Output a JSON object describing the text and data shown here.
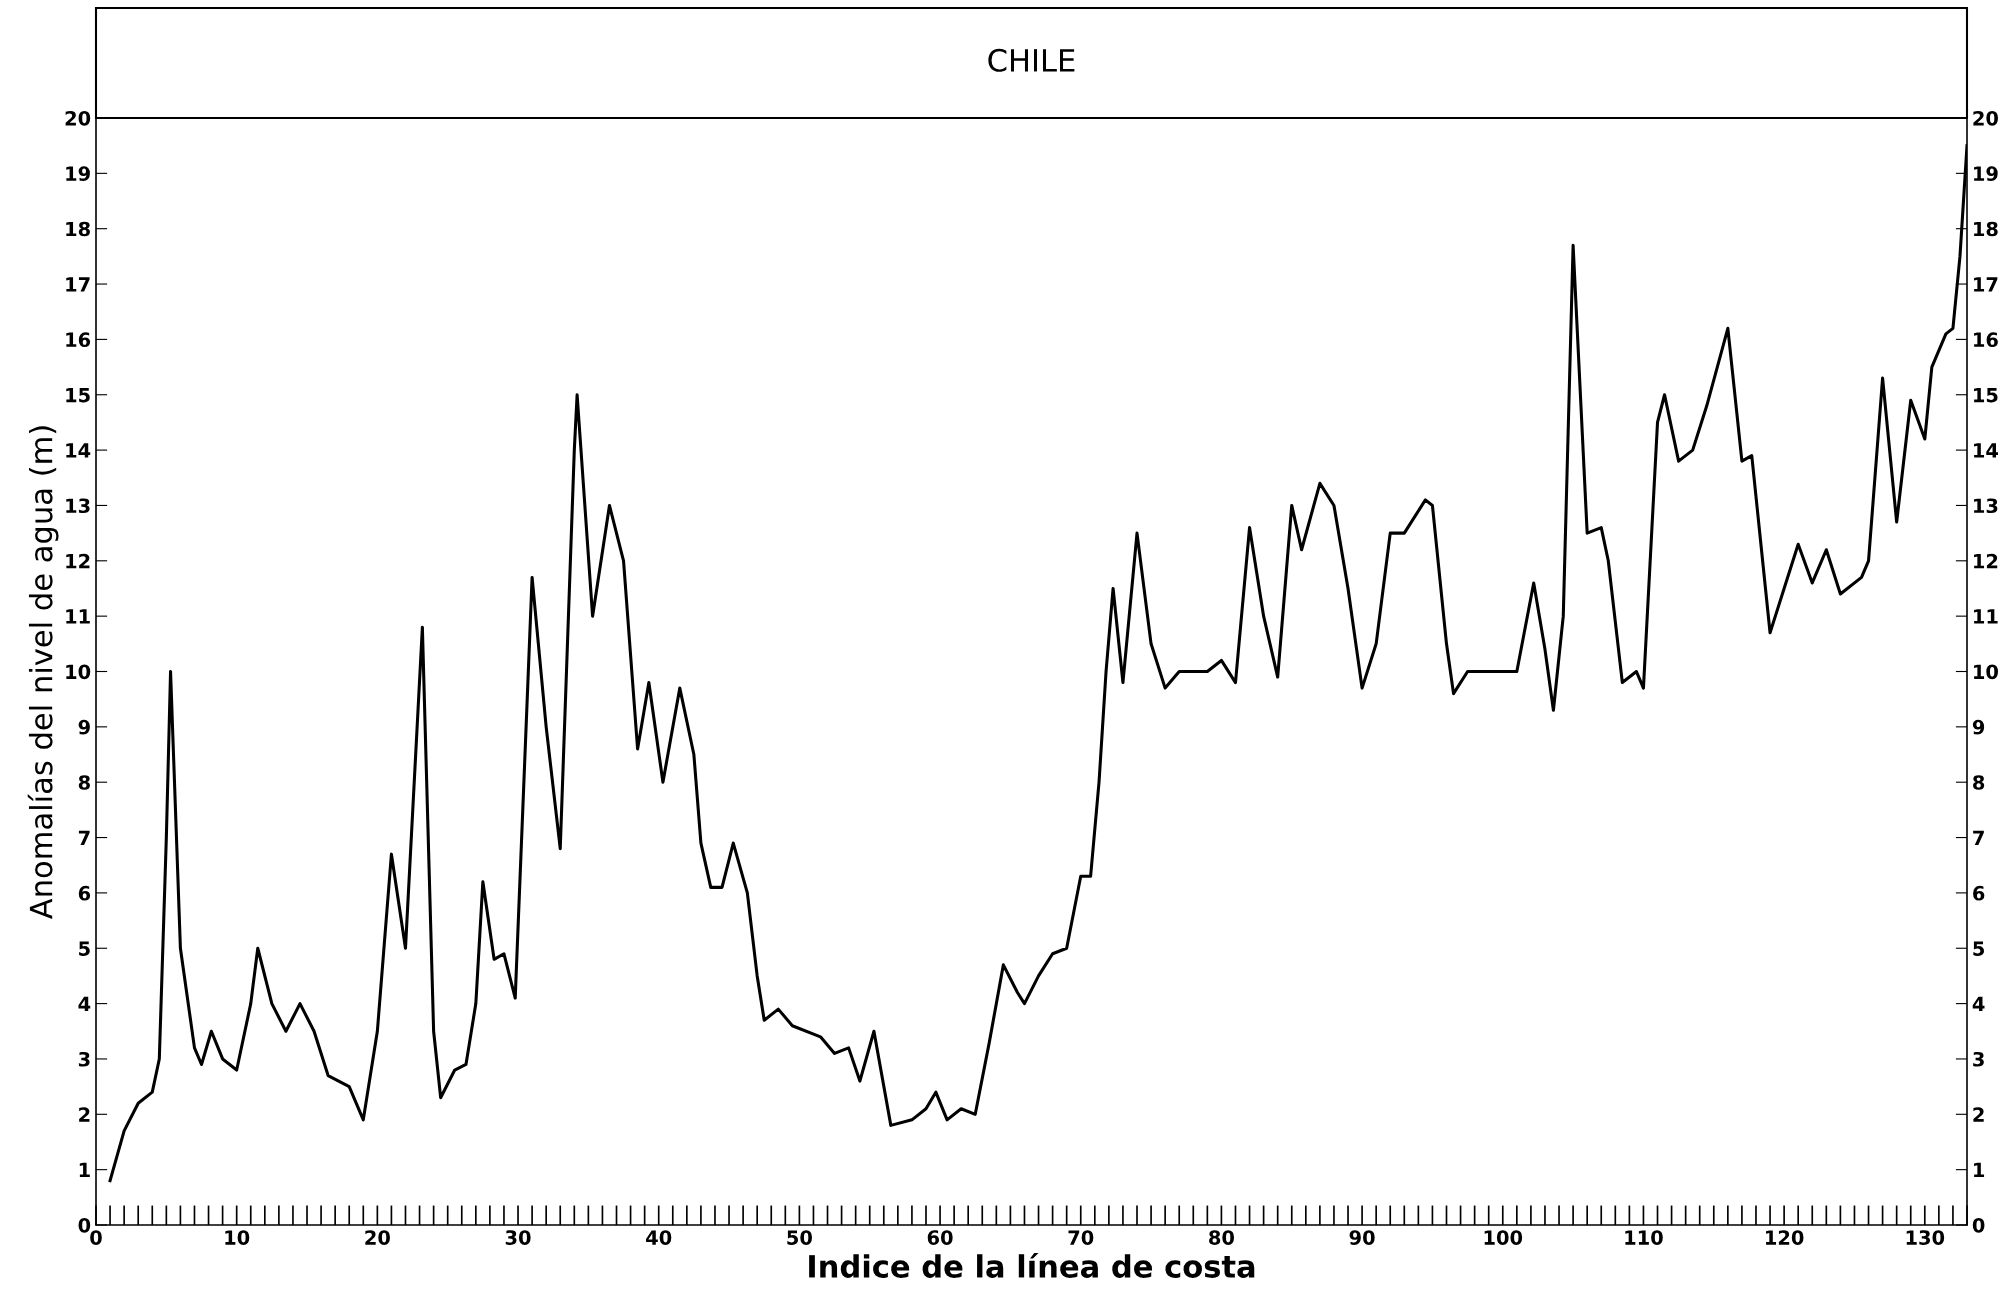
{
  "chart_data": {
    "type": "line",
    "title": "CHILE",
    "xlabel": "Indice de la línea de costa",
    "ylabel": "Anomalías del nivel de agua (m)",
    "x": [
      1,
      2,
      3,
      4,
      4.5,
      5,
      5.3,
      6,
      7,
      7.5,
      8.2,
      9,
      10,
      11,
      11.5,
      12.5,
      13.5,
      14.5,
      15.5,
      16.5,
      18,
      19,
      20,
      21,
      22,
      23.2,
      24,
      24.5,
      25.5,
      26.3,
      27,
      27.5,
      28.3,
      29,
      29.8,
      31,
      32,
      33,
      34,
      34.2,
      35.3,
      36.5,
      37.5,
      38.5,
      39.3,
      40.3,
      41.5,
      42.5,
      43,
      43.7,
      44.5,
      45.3,
      46.3,
      47,
      47.5,
      48.5,
      49.5,
      51.5,
      52.5,
      53.5,
      54.3,
      55.3,
      56.5,
      58,
      59,
      59.7,
      60.5,
      61.5,
      62.5,
      63.5,
      64.5,
      65.5,
      66,
      67,
      68,
      69,
      70,
      70.7,
      71.3,
      71.8,
      72.3,
      73,
      74,
      75,
      76,
      77,
      79,
      80,
      81,
      82,
      83,
      84,
      85,
      85.7,
      87,
      88,
      89,
      90,
      91,
      92,
      93,
      94.5,
      95,
      96,
      96.5,
      97.5,
      101,
      102.2,
      103,
      103.6,
      104.3,
      105,
      106,
      107,
      107.5,
      108.5,
      109.5,
      110,
      111,
      111.5,
      112.5,
      113.5,
      114.5,
      116,
      117,
      117.7,
      119,
      120,
      121,
      122,
      123,
      124,
      125.5,
      126,
      127,
      128,
      129,
      130,
      130.5,
      131.5,
      132,
      132.5,
      133
    ],
    "series": [
      {
        "color": "#000000",
        "values": [
          0.8,
          1.7,
          2.2,
          2.4,
          3,
          7,
          10,
          5,
          3.2,
          2.9,
          3.5,
          3,
          2.8,
          4,
          5,
          4,
          3.5,
          4,
          3.5,
          2.7,
          2.5,
          1.9,
          3.5,
          6.7,
          5,
          10.8,
          3.5,
          2.3,
          2.8,
          2.9,
          4,
          6.2,
          4.8,
          4.9,
          4.1,
          11.7,
          9,
          6.8,
          14,
          15,
          11,
          13,
          12,
          8.6,
          9.8,
          8,
          9.7,
          8.5,
          6.9,
          6.1,
          6.1,
          6.9,
          6,
          4.5,
          3.7,
          3.9,
          3.6,
          3.4,
          3.1,
          3.2,
          2.6,
          3.5,
          1.8,
          1.9,
          2.1,
          2.4,
          1.9,
          2.1,
          2,
          3.3,
          4.7,
          4.2,
          4,
          4.5,
          4.9,
          5,
          6.3,
          6.3,
          8,
          10,
          11.5,
          9.8,
          12.5,
          10.5,
          9.7,
          10,
          10,
          10.2,
          9.8,
          12.6,
          11,
          9.9,
          13,
          12.2,
          13.4,
          13,
          11.5,
          9.7,
          10.5,
          12.5,
          12.5,
          13.1,
          13,
          10.5,
          9.6,
          10,
          10,
          11.6,
          10.4,
          9.3,
          11,
          17.7,
          12.5,
          12.6,
          12,
          9.8,
          10,
          9.7,
          14.5,
          15,
          13.8,
          14,
          14.8,
          16.2,
          13.8,
          13.9,
          10.7,
          11.5,
          12.3,
          11.6,
          12.2,
          11.4,
          11.7,
          12,
          15.3,
          12.7,
          14.9,
          14.2,
          15.5,
          16.1,
          16.2,
          17.5,
          19.5
        ]
      }
    ],
    "xlim": [
      0,
      133
    ],
    "ylim": [
      0,
      20
    ],
    "y2lim": [
      0,
      20
    ],
    "xticks": [
      0,
      10,
      20,
      30,
      40,
      50,
      60,
      70,
      80,
      90,
      100,
      110,
      120,
      130
    ],
    "yticks": [
      0,
      1,
      2,
      3,
      4,
      5,
      6,
      7,
      8,
      9,
      10,
      11,
      12,
      13,
      14,
      15,
      16,
      17,
      18,
      19,
      20
    ],
    "y2ticks": [
      0,
      1,
      2,
      3,
      4,
      5,
      6,
      7,
      8,
      9,
      10,
      11,
      12,
      13,
      14,
      15,
      16,
      17,
      18,
      19,
      20
    ],
    "grid": false,
    "legend": false,
    "marker": "none",
    "line_style": "solid"
  }
}
